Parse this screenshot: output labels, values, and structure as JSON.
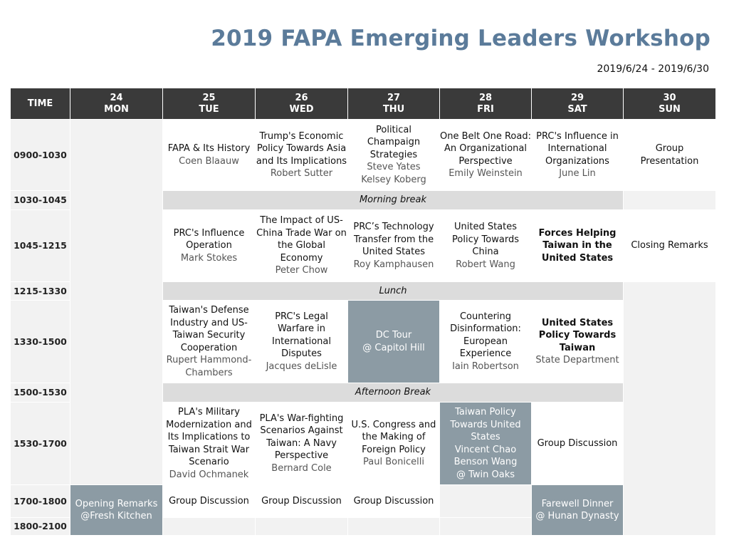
{
  "header": {
    "title": "2019 FAPA Emerging Leaders Workshop",
    "date_range": "2019/6/24 - 2019/6/30"
  },
  "table": {
    "time_header": "TIME",
    "days": [
      {
        "num": "24",
        "name": "MON"
      },
      {
        "num": "25",
        "name": "TUE"
      },
      {
        "num": "26",
        "name": "WED"
      },
      {
        "num": "27",
        "name": "THU"
      },
      {
        "num": "28",
        "name": "FRI"
      },
      {
        "num": "29",
        "name": "SAT"
      },
      {
        "num": "30",
        "name": "SUN"
      }
    ],
    "times": [
      "0900-1030",
      "1030-1045",
      "1045-1215",
      "1215-1330",
      "1330-1500",
      "1500-1530",
      "1530-1700",
      "1700-1800",
      "1800-2100"
    ],
    "breaks": {
      "morning": "Morning break",
      "lunch": "Lunch",
      "afternoon": "Afternoon Break"
    },
    "sessions": {
      "tue_0900": {
        "title": "FAPA & Its History",
        "speaker": "Coen Blaauw"
      },
      "wed_0900": {
        "title": "Trump's Economic Policy Towards Asia and Its Implications",
        "speaker": "Robert Sutter"
      },
      "thu_0900": {
        "title": "Political Champaign Strategies",
        "speaker": "Steve Yates",
        "speaker2": "Kelsey Koberg"
      },
      "fri_0900": {
        "title": "One Belt One Road: An Organizational Perspective",
        "speaker": "Emily Weinstein"
      },
      "sat_0900": {
        "title": "PRC's Influence in International Organizations",
        "speaker": "June Lin"
      },
      "sun_0900": {
        "title": "Group Presentation"
      },
      "tue_1045": {
        "title": "PRC's Influence Operation",
        "speaker": "Mark Stokes"
      },
      "wed_1045": {
        "title": "The Impact of US-China Trade War on the Global Economy",
        "speaker": "Peter Chow"
      },
      "thu_1045": {
        "title": "PRC’s Technology Transfer from the United States",
        "speaker": "Roy Kamphausen"
      },
      "fri_1045": {
        "title": "United States Policy Towards China",
        "speaker": "Robert Wang"
      },
      "sat_1045": {
        "title": "Forces Helping Taiwan in the United States"
      },
      "sun_1045": {
        "title": "Closing Remarks"
      },
      "tue_1330": {
        "title": "Taiwan's Defense Industry and US-Taiwan Security Cooperation",
        "speaker": "Rupert Hammond-Chambers"
      },
      "wed_1330": {
        "title": "PRC's Legal Warfare in International Disputes",
        "speaker": "Jacques deLisle"
      },
      "thu_1330": {
        "title": "DC Tour",
        "speaker": "@ Capitol Hill"
      },
      "fri_1330": {
        "title": "Countering Disinformation: European Experience",
        "speaker": "Iain Robertson"
      },
      "sat_1330": {
        "title": "United States Policy Towards Taiwan",
        "speaker": "State Department"
      },
      "tue_1530": {
        "title": "PLA's Military Modernization and Its Implications to Taiwan Strait War Scenario",
        "speaker": "David Ochmanek"
      },
      "wed_1530": {
        "title": "PLA's War-fighting Scenarios Against Taiwan: A Navy Perspective",
        "speaker": "Bernard Cole"
      },
      "thu_1530": {
        "title": "U.S. Congress and the Making of Foreign Policy",
        "speaker": "Paul Bonicelli"
      },
      "fri_1530": {
        "title": "Taiwan Policy Towards United States",
        "speaker": "Vincent Chao",
        "speaker2": "Benson Wang",
        "speaker3": "@ Twin Oaks"
      },
      "sat_1530": {
        "title": "Group Discussion"
      },
      "mon_1700": {
        "title": "Opening Remarks",
        "speaker": "@Fresh Kitchen"
      },
      "tue_1700": {
        "title": "Group Discussion"
      },
      "wed_1700": {
        "title": "Group Discussion"
      },
      "thu_1700": {
        "title": "Group Discussion"
      },
      "sat_1700": {
        "title": "Farewell Dinner",
        "speaker": "@ Hunan Dynasty"
      }
    },
    "colors": {
      "header_bg": "#3a3a3a",
      "title_color": "#5b7b9a",
      "break_bg": "#dcdcdc",
      "highlight_bg": "#8c9ba4",
      "empty_bg": "#f2f2f2"
    }
  }
}
